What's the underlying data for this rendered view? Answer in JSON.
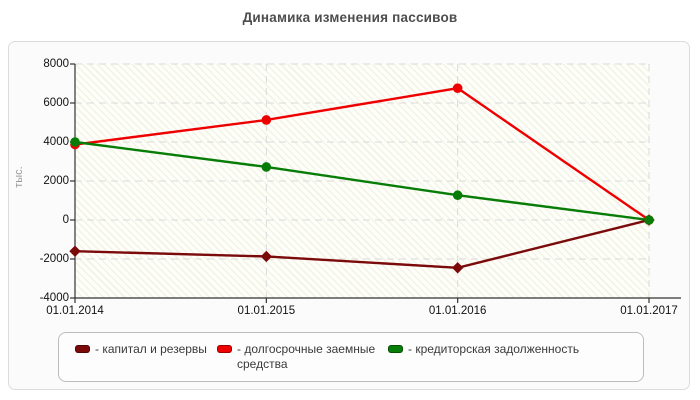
{
  "title": "Динамика изменения пассивов",
  "colors": {
    "series_maroon": "#7b0a0a",
    "series_red": "#ee0000",
    "series_green": "#077d07",
    "axis": "#333333",
    "gridline": "#dadada",
    "panel_border": "#dcdcdc",
    "title_text": "#4d4d4d"
  },
  "chart_data": {
    "type": "line",
    "title": "Динамика изменения пассивов",
    "ylabel": "тыс.",
    "xlabel": "",
    "categories": [
      "01.01.2014",
      "01.01.2015",
      "01.01.2016",
      "01.01.2017"
    ],
    "series": [
      {
        "name": "капитал и резервы",
        "color": "#7b0a0a",
        "marker": "diamond",
        "values": [
          -1600,
          -1870,
          -2450,
          0
        ]
      },
      {
        "name": "долгосрочные заемные средства",
        "color": "#ee0000",
        "marker": "circle",
        "values": [
          3870,
          5130,
          6760,
          0
        ]
      },
      {
        "name": "кредиторская задолженность",
        "color": "#077d07",
        "marker": "circle",
        "values": [
          4000,
          2720,
          1270,
          0
        ]
      }
    ],
    "legend_prefix": "- ",
    "ylim": [
      -4000,
      8000
    ],
    "y_ticks": [
      8000,
      6000,
      4000,
      2000,
      0,
      -2000,
      -4000
    ],
    "grid": true,
    "legend_position": "bottom"
  }
}
